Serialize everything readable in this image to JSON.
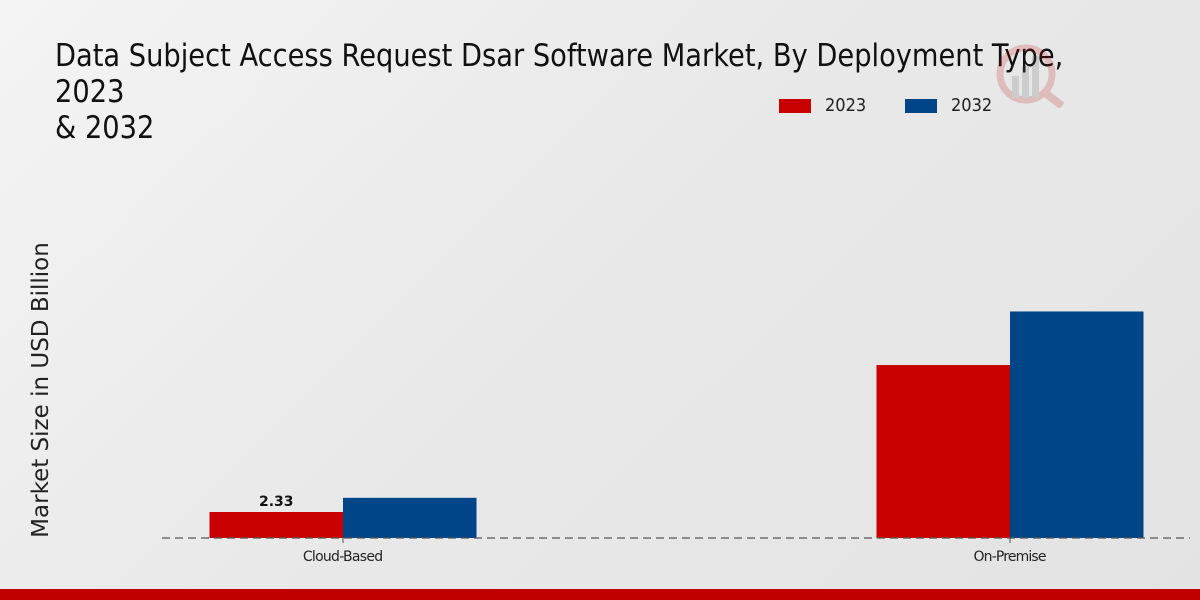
{
  "chart_data": {
    "type": "bar",
    "title": "Data Subject Access Request Dsar Software Market, By Deployment Type, 2023 & 2032",
    "title_display": "Data Subject Access Request Dsar Software Market, By Deployment Type, 2023\n& 2032",
    "xlabel": "",
    "ylabel": "Market Size in USD Billion",
    "categories": [
      "Cloud-Based",
      "On-Premise"
    ],
    "series": [
      {
        "name": "2023",
        "color": "#c80000",
        "values": [
          2.33,
          15.5
        ]
      },
      {
        "name": "2032",
        "color": "#004587",
        "values": [
          3.6,
          20.3
        ]
      }
    ],
    "data_labels": [
      {
        "series": "2023",
        "category": "Cloud-Based",
        "text": "2.33"
      }
    ],
    "ylim": [
      0,
      23
    ],
    "grid": false,
    "legend_position": "top-right",
    "baseline_style": "dashed"
  },
  "branding": {
    "watermark_icon": "market-research-logo-icon",
    "footer_color": "#c00000"
  }
}
